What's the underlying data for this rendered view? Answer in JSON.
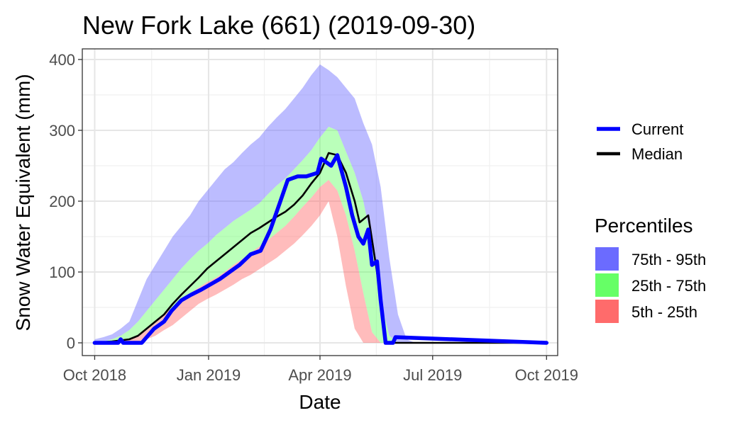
{
  "chart_data": {
    "type": "area",
    "title": "New Fork Lake (661) (2019-09-30)",
    "xlabel": "Date",
    "ylabel": "Snow Water Equivalent (mm)",
    "x_ticks": [
      "Oct 2018",
      "Jan 2019",
      "Apr 2019",
      "Jul 2019",
      "Oct 2019"
    ],
    "x_tick_dates": [
      "2018-10-01",
      "2019-01-01",
      "2019-04-01",
      "2019-07-01",
      "2019-10-01"
    ],
    "xlim": [
      "2018-09-21",
      "2019-10-10"
    ],
    "y_ticks": [
      0,
      100,
      200,
      300,
      400
    ],
    "ylim": [
      -18,
      415
    ],
    "grid": true,
    "colors": {
      "current": "#0000ff",
      "median": "#000000",
      "band_75_95": "#6b6bff",
      "band_25_75": "#66ff66",
      "band_5_25": "#ff6b6b",
      "band_opacity": 0.45
    },
    "legend": {
      "lines_title": "",
      "lines": [
        {
          "name": "Current",
          "color": "#0000ff"
        },
        {
          "name": "Median",
          "color": "#000000"
        }
      ],
      "percentiles_title": "Percentiles",
      "percentiles": [
        {
          "name": "75th - 95th",
          "color": "#6b6bff"
        },
        {
          "name": "25th - 75th",
          "color": "#66ff66"
        },
        {
          "name": "5th - 25th",
          "color": "#ff6b6b"
        }
      ]
    },
    "band_dates": [
      "2018-10-01",
      "2018-10-08",
      "2018-10-15",
      "2018-10-22",
      "2018-10-29",
      "2018-11-05",
      "2018-11-12",
      "2018-11-19",
      "2018-11-26",
      "2018-12-03",
      "2018-12-10",
      "2018-12-17",
      "2018-12-24",
      "2018-12-31",
      "2019-01-07",
      "2019-01-14",
      "2019-01-21",
      "2019-01-28",
      "2019-02-04",
      "2019-02-11",
      "2019-02-18",
      "2019-02-25",
      "2019-03-04",
      "2019-03-11",
      "2019-03-18",
      "2019-03-25",
      "2019-04-01",
      "2019-04-08",
      "2019-04-15",
      "2019-04-22",
      "2019-04-29",
      "2019-05-06",
      "2019-05-13",
      "2019-05-20",
      "2019-05-27",
      "2019-06-03",
      "2019-06-10",
      "2019-06-17",
      "2019-10-01"
    ],
    "series": [
      {
        "name": "95th",
        "values": [
          5,
          8,
          12,
          20,
          30,
          60,
          90,
          110,
          130,
          150,
          165,
          180,
          200,
          215,
          230,
          245,
          255,
          268,
          280,
          290,
          305,
          318,
          330,
          345,
          360,
          378,
          393,
          385,
          375,
          360,
          345,
          310,
          280,
          220,
          120,
          40,
          5,
          0,
          0
        ]
      },
      {
        "name": "75th",
        "values": [
          0,
          2,
          5,
          10,
          18,
          30,
          45,
          60,
          75,
          90,
          105,
          118,
          130,
          140,
          152,
          162,
          172,
          180,
          188,
          197,
          210,
          222,
          232,
          245,
          258,
          272,
          290,
          305,
          300,
          270,
          240,
          200,
          140,
          60,
          10,
          0,
          0,
          0,
          0
        ]
      },
      {
        "name": "25th",
        "values": [
          0,
          0,
          0,
          2,
          5,
          10,
          18,
          28,
          40,
          50,
          60,
          70,
          78,
          86,
          92,
          100,
          110,
          118,
          127,
          136,
          145,
          155,
          165,
          178,
          192,
          205,
          220,
          230,
          215,
          180,
          130,
          70,
          15,
          0,
          0,
          0,
          0,
          0,
          0
        ]
      },
      {
        "name": "5th",
        "values": [
          0,
          0,
          0,
          0,
          0,
          2,
          5,
          10,
          18,
          25,
          35,
          45,
          55,
          62,
          68,
          75,
          82,
          90,
          96,
          104,
          112,
          120,
          130,
          140,
          152,
          165,
          180,
          200,
          150,
          80,
          20,
          0,
          0,
          0,
          0,
          0,
          0,
          0,
          0
        ]
      },
      {
        "name": "Median",
        "dates": [
          "2018-10-01",
          "2018-10-15",
          "2018-10-29",
          "2018-11-05",
          "2018-11-12",
          "2018-11-19",
          "2018-11-26",
          "2018-12-03",
          "2018-12-10",
          "2018-12-17",
          "2018-12-24",
          "2018-12-31",
          "2019-01-07",
          "2019-01-14",
          "2019-01-21",
          "2019-01-28",
          "2019-02-04",
          "2019-02-11",
          "2019-02-18",
          "2019-02-25",
          "2019-03-04",
          "2019-03-11",
          "2019-03-18",
          "2019-03-25",
          "2019-04-01",
          "2019-04-08",
          "2019-04-15",
          "2019-04-22",
          "2019-04-29",
          "2019-05-03",
          "2019-05-10",
          "2019-05-17",
          "2019-05-20",
          "2019-05-24",
          "2019-10-01"
        ],
        "values": [
          0,
          2,
          5,
          10,
          20,
          30,
          40,
          55,
          68,
          80,
          92,
          105,
          115,
          125,
          135,
          145,
          155,
          162,
          170,
          178,
          185,
          195,
          208,
          225,
          240,
          268,
          265,
          240,
          200,
          170,
          180,
          100,
          60,
          0,
          0
        ]
      },
      {
        "name": "Current",
        "dates": [
          "2018-10-01",
          "2018-10-20",
          "2018-10-22",
          "2018-10-24",
          "2018-11-08",
          "2018-11-12",
          "2018-11-18",
          "2018-11-26",
          "2018-12-02",
          "2018-12-10",
          "2018-12-18",
          "2018-12-26",
          "2019-01-02",
          "2019-01-10",
          "2019-01-18",
          "2019-01-26",
          "2019-02-04",
          "2019-02-12",
          "2019-02-20",
          "2019-02-28",
          "2019-03-06",
          "2019-03-14",
          "2019-03-21",
          "2019-03-30",
          "2019-04-02",
          "2019-04-06",
          "2019-04-10",
          "2019-04-15",
          "2019-04-22",
          "2019-04-27",
          "2019-05-02",
          "2019-05-06",
          "2019-05-10",
          "2019-05-13",
          "2019-05-17",
          "2019-05-20",
          "2019-05-24",
          "2019-05-30",
          "2019-06-01",
          "2019-10-01"
        ],
        "values": [
          0,
          0,
          5,
          0,
          0,
          8,
          20,
          30,
          45,
          60,
          68,
          75,
          82,
          90,
          100,
          110,
          125,
          130,
          160,
          200,
          230,
          235,
          235,
          240,
          260,
          255,
          250,
          265,
          220,
          180,
          150,
          140,
          160,
          110,
          115,
          60,
          0,
          0,
          8,
          0
        ]
      }
    ]
  }
}
